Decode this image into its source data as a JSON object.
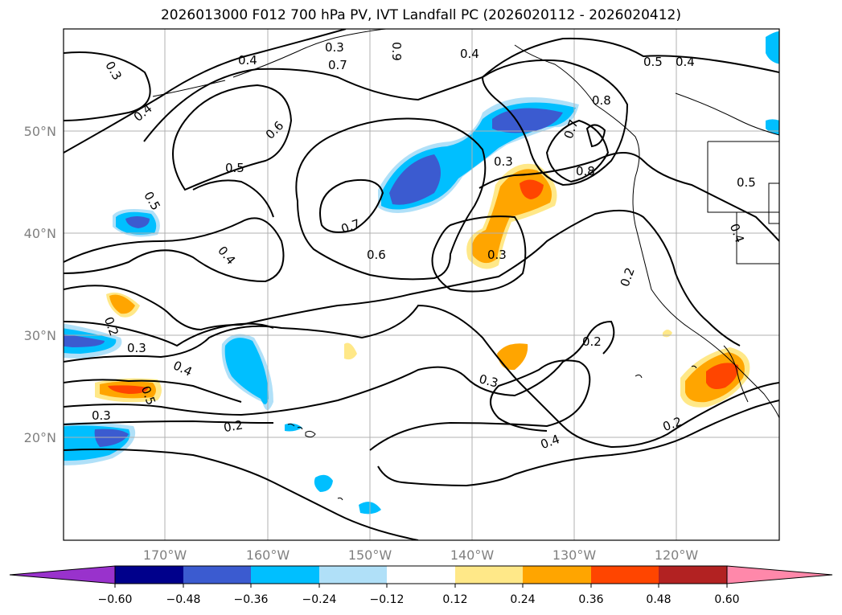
{
  "title": "2026013000 F012 700 hPa PV, IVT Landfall PC (2026020112 - 2026020412)",
  "lat_labels": [
    "50°N",
    "40°N",
    "30°N",
    "20°N"
  ],
  "lon_labels": [
    "170°W",
    "160°W",
    "150°W",
    "140°W",
    "130°W",
    "120°W"
  ],
  "contour_labels": [
    "0.3",
    "0.4",
    "0.4",
    "0.3",
    "0.7",
    "0.9",
    "0.4",
    "0.5",
    "0.4",
    "0.7",
    "0.8",
    "0.6",
    "0.5",
    "0.5",
    "0.3",
    "0.7",
    "0.8",
    "0.6",
    "0.4",
    "0.5",
    "0.3",
    "0.2",
    "0.4",
    "0.2",
    "0.3",
    "0.4",
    "0.5",
    "0.3",
    "0.3",
    "0.2",
    "0.4",
    "0.2"
  ],
  "colorbar": {
    "ticks": [
      "−0.60",
      "−0.48",
      "−0.36",
      "−0.24",
      "−0.12",
      "0.12",
      "0.24",
      "0.36",
      "0.48",
      "0.60"
    ],
    "colors": [
      "#9932cc",
      "#00008b",
      "#3b5bd0",
      "#00bfff",
      "#b0e0f8",
      "#ffffff",
      "#ffe888",
      "#ffa500",
      "#ff4500",
      "#b22222",
      "#ff88aa"
    ]
  },
  "fill_colors": {
    "neg_light": "#b0e0f8",
    "neg_mid": "#00bfff",
    "neg_dark": "#3b5bd0",
    "pos_light": "#ffe888",
    "pos_mid": "#ffa500",
    "pos_dark": "#ff4500"
  }
}
